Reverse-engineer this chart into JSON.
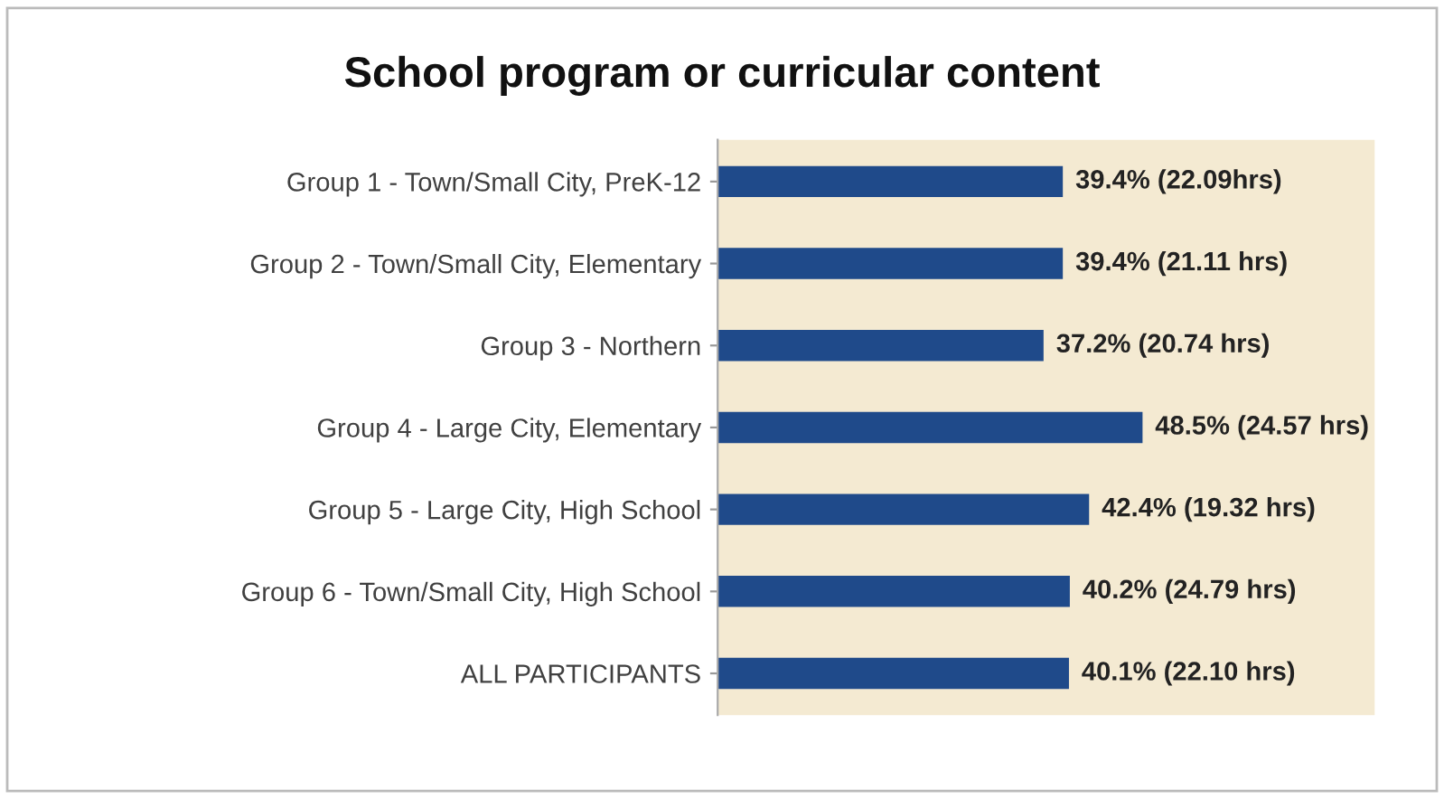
{
  "chart_data": {
    "type": "bar",
    "orientation": "horizontal",
    "title": "School program or curricular content",
    "categories": [
      "Group 1 - Town/Small City, PreK-12",
      "Group 2 - Town/Small City, Elementary",
      "Group 3 - Northern",
      "Group 4 - Large City, Elementary",
      "Group 5 - Large City, High School",
      "Group 6 - Town/Small City, High School",
      "ALL PARTICIPANTS"
    ],
    "values": [
      39.4,
      39.4,
      37.2,
      48.5,
      42.4,
      40.2,
      40.1
    ],
    "value_labels": [
      "39.4% (22.09hrs)",
      "39.4% (21.11 hrs)",
      "37.2% (20.74 hrs)",
      "48.5% (24.57 hrs)",
      "42.4% (19.32 hrs)",
      "40.2% (24.79 hrs)",
      "40.1% (22.10 hrs)"
    ],
    "color": "#1f4a8a",
    "xlim": [
      0,
      75
    ],
    "tick_labels": "y",
    "grid": false,
    "legend": false
  }
}
